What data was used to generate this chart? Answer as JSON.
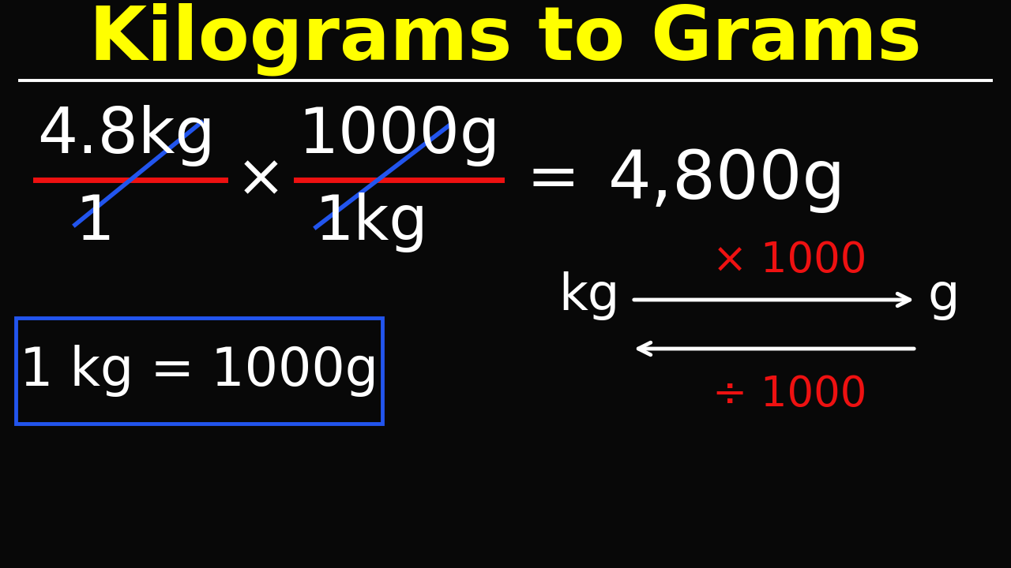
{
  "title": "Kilograms to Grams",
  "title_color": "#FFFF00",
  "title_fontsize": 68,
  "bg_color": "#080808",
  "white": "#FFFFFF",
  "red": "#EE1111",
  "blue": "#2255EE",
  "yellow": "#FFFF00",
  "fraction1_num": "4.8kg",
  "fraction1_den": "1",
  "fraction2_num": "1000g",
  "fraction2_den": "1kg",
  "result": "4,800g",
  "box_text": "1 kg = 1000g",
  "x1000_label": "× 1000",
  "div1000_label": "÷ 1000",
  "kg_label": "kg",
  "g_label": "g"
}
